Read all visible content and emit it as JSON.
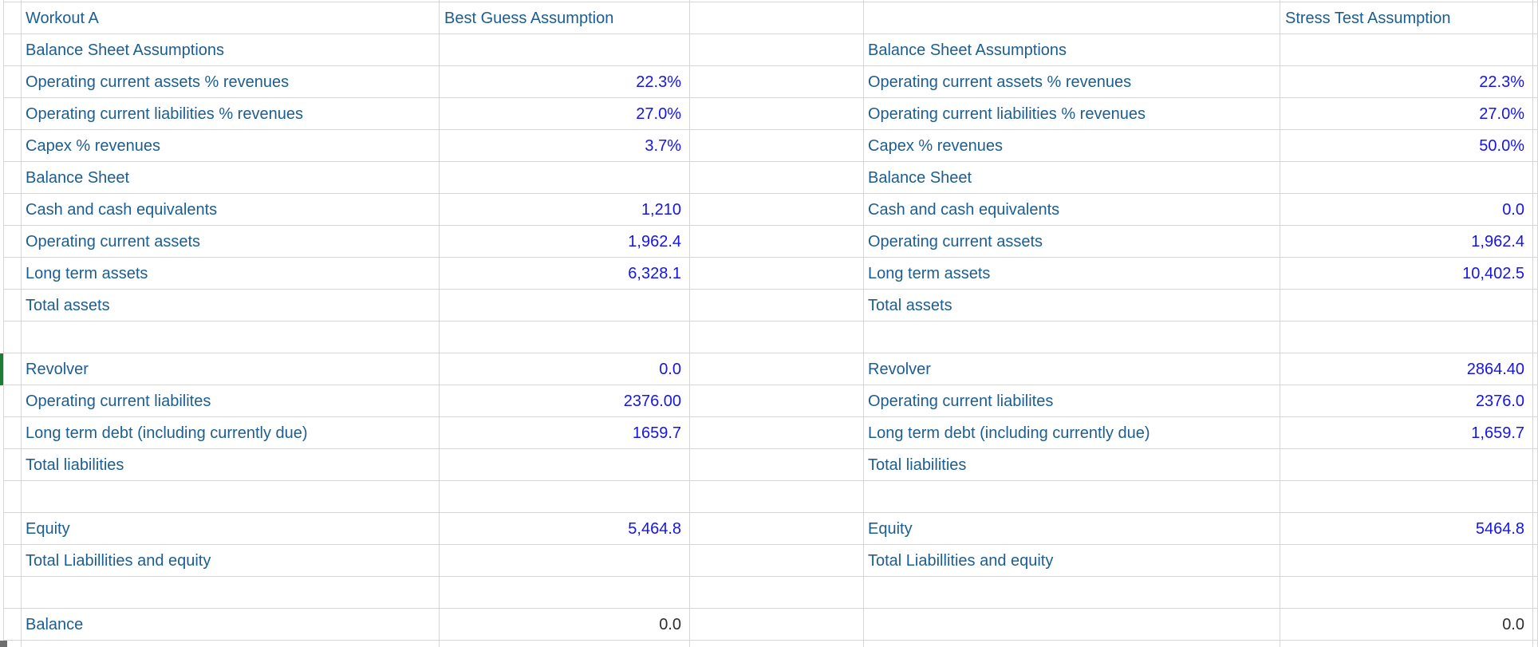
{
  "colors": {
    "label_blue": "#1D5D91",
    "value_blue": "#1414F0",
    "value_dark": "#2E2E2E",
    "gridline": "#D6D6D6",
    "row_marker_green": "#1E7D32"
  },
  "grid": {
    "rows": [
      {
        "b": "Workout A",
        "c": "Best Guess Assumption",
        "f": "Stress Test Assumption",
        "c_style": "header",
        "f_style": "header"
      },
      {
        "b": "Balance Sheet Assumptions",
        "e": "Balance Sheet Assumptions"
      },
      {
        "b": "Operating current assets % revenues",
        "c": "22.3%",
        "e": "Operating current assets % revenues",
        "f": "22.3%"
      },
      {
        "b": "Operating current liabilities % revenues",
        "c": "27.0%",
        "e": "Operating current liabilities % revenues",
        "f": "27.0%"
      },
      {
        "b": "Capex % revenues",
        "c": "3.7%",
        "e": "Capex % revenues",
        "f": "50.0%"
      },
      {
        "b": "Balance Sheet",
        "e": "Balance Sheet"
      },
      {
        "b": "Cash and cash equivalents",
        "c": "1,210",
        "e": "Cash and cash equivalents",
        "f": "0.0"
      },
      {
        "b": "Operating current assets",
        "c": "1,962.4",
        "e": "Operating current assets",
        "f": "1,962.4"
      },
      {
        "b": "Long term assets",
        "c": "6,328.1",
        "e": "Long term assets",
        "f": "10,402.5"
      },
      {
        "b": "Total assets",
        "e": "Total assets"
      },
      {},
      {
        "b": "Revolver",
        "c": "0.0",
        "e": "Revolver",
        "f": "2864.40"
      },
      {
        "b": "Operating current liabilites",
        "c": "2376.00",
        "e": "Operating current liabilites",
        "f": "2376.0"
      },
      {
        "b": "Long term debt (including currently due)",
        "c": "1659.7",
        "e": "Long term debt (including currently due)",
        "f": "1,659.7"
      },
      {
        "b": "Total liabilities",
        "e": "Total liabilities"
      },
      {},
      {
        "b": "Equity",
        "c": "5,464.8",
        "e": "Equity",
        "f": "5464.8"
      },
      {
        "b": "Total Liabillities and equity",
        "e": "Total Liabillities and equity"
      },
      {},
      {
        "b": "Balance",
        "c": "0.0",
        "f": "0.0",
        "c_style": "dark",
        "f_style": "dark"
      },
      {}
    ]
  }
}
